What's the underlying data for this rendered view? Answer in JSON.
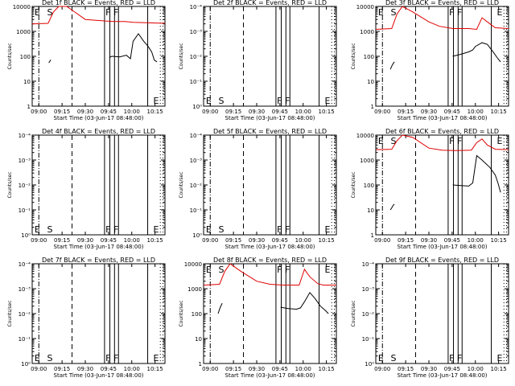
{
  "chart_data": [
    {
      "type": "line",
      "title": "Det 1f BLACK = Events, RED = LLD",
      "xlabel": "Start Time (03-Jun-17 08:48:00)",
      "ylabel": "Counts/sec",
      "xticks": [
        "09:00",
        "09:15",
        "09:30",
        "09:45",
        "10:00",
        "10:15"
      ],
      "yticks": [
        "1",
        "10",
        "100",
        "1000",
        "10000"
      ],
      "flags": [
        "E",
        "S",
        "F",
        "F",
        "E"
      ],
      "flag_hidden": [
        true,
        true,
        true,
        true,
        false
      ],
      "ylim": [
        1,
        10000
      ],
      "lld": [
        [
          0.0,
          2000
        ],
        [
          0.12,
          2100
        ],
        [
          0.16,
          6000
        ],
        [
          0.2,
          10000
        ],
        [
          0.26,
          10000
        ],
        [
          0.32,
          6000
        ],
        [
          0.4,
          3000
        ],
        [
          0.55,
          2600
        ],
        [
          0.62,
          2500
        ],
        [
          0.7,
          2500
        ],
        [
          0.76,
          2300
        ],
        [
          0.88,
          2200
        ],
        [
          1.0,
          2100
        ]
      ],
      "events": [
        [
          [
            0.125,
            55
          ],
          [
            0.13,
            60
          ],
          [
            0.14,
            72
          ]
        ],
        [
          [
            0.58,
            90
          ],
          [
            0.6,
            100
          ],
          [
            0.66,
            95
          ],
          [
            0.71,
            110
          ],
          [
            0.74,
            80
          ],
          [
            0.76,
            400
          ],
          [
            0.8,
            800
          ],
          [
            0.84,
            400
          ],
          [
            0.87,
            260
          ],
          [
            0.9,
            150
          ],
          [
            0.92,
            70
          ],
          [
            0.94,
            60
          ]
        ]
      ]
    },
    {
      "type": "line",
      "title": "Det 2f BLACK = Events, RED = LLD",
      "xlabel": "Start Time (03-Jun-17 08:48:00)",
      "ylabel": "Counts/sec",
      "xticks": [
        "09:00",
        "09:15",
        "09:30",
        "09:45",
        "10:00",
        "10:15"
      ],
      "yticks": [
        "10⁰",
        "10⁻¹",
        "10⁻²",
        "10⁻³",
        "10⁻⁴"
      ],
      "flags": [
        "E",
        "S",
        "F",
        "F",
        "E"
      ],
      "flag_hidden": [
        false,
        false,
        false,
        false,
        false
      ],
      "ylim": [
        0.0001,
        1
      ],
      "lld": [],
      "events": []
    },
    {
      "type": "line",
      "title": "Det 3f BLACK = Events, RED = LLD",
      "xlabel": "Start Time (03-Jun-17 08:48:00)",
      "ylabel": "Counts/sec",
      "xticks": [
        "09:00",
        "09:15",
        "09:30",
        "09:45",
        "10:00",
        "10:15"
      ],
      "yticks": [
        "1",
        "10",
        "100",
        "1000",
        "10000"
      ],
      "flags": [
        "E",
        "S",
        "F",
        "F",
        "E"
      ],
      "flag_hidden": [
        true,
        true,
        true,
        true,
        true
      ],
      "ylim": [
        1,
        10000
      ],
      "lld": [
        [
          0.0,
          1200
        ],
        [
          0.12,
          1300
        ],
        [
          0.16,
          5000
        ],
        [
          0.2,
          10000
        ],
        [
          0.28,
          6000
        ],
        [
          0.4,
          2400
        ],
        [
          0.48,
          1600
        ],
        [
          0.58,
          1300
        ],
        [
          0.7,
          1300
        ],
        [
          0.76,
          1200
        ],
        [
          0.8,
          3500
        ],
        [
          0.86,
          2000
        ],
        [
          0.9,
          1400
        ],
        [
          1.0,
          1300
        ]
      ],
      "events": [
        [
          [
            0.11,
            30
          ],
          [
            0.12,
            40
          ],
          [
            0.13,
            50
          ],
          [
            0.14,
            60
          ]
        ],
        [
          [
            0.58,
            100
          ],
          [
            0.64,
            120
          ],
          [
            0.7,
            150
          ],
          [
            0.73,
            180
          ],
          [
            0.75,
            250
          ],
          [
            0.8,
            350
          ],
          [
            0.84,
            300
          ],
          [
            0.88,
            160
          ],
          [
            0.92,
            80
          ],
          [
            0.94,
            60
          ]
        ]
      ]
    },
    {
      "type": "line",
      "title": "Det 4f BLACK = Events, RED = LLD",
      "xlabel": "Start Time (03-Jun-17 08:48:00)",
      "ylabel": "Counts/sec",
      "xticks": [
        "09:00",
        "09:15",
        "09:30",
        "09:45",
        "10:00",
        "10:15"
      ],
      "yticks": [
        "10⁰",
        "10⁻¹",
        "10⁻²",
        "10⁻³",
        "10⁻⁴"
      ],
      "flags": [
        "E",
        "S",
        "F",
        "F",
        "E"
      ],
      "flag_hidden": [
        false,
        false,
        false,
        false,
        false
      ],
      "ylim": [
        0.0001,
        1
      ],
      "lld": [],
      "events": []
    },
    {
      "type": "line",
      "title": "Det 5f BLACK = Events, RED = LLD",
      "xlabel": "Start Time (03-Jun-17 08:48:00)",
      "ylabel": "Counts/sec",
      "xticks": [
        "09:00",
        "09:15",
        "09:30",
        "09:45",
        "10:00",
        "10:15"
      ],
      "yticks": [
        "10⁰",
        "10⁻¹",
        "10⁻²",
        "10⁻³",
        "10⁻⁴"
      ],
      "flags": [
        "E",
        "S",
        "F",
        "F",
        "E"
      ],
      "flag_hidden": [
        false,
        false,
        false,
        false,
        false
      ],
      "ylim": [
        0.0001,
        1
      ],
      "lld": [],
      "events": []
    },
    {
      "type": "line",
      "title": "Det 6f BLACK = Events, RED = LLD",
      "xlabel": "Start Time (03-Jun-17 08:48:00)",
      "ylabel": "Counts/sec",
      "xticks": [
        "09:00",
        "09:15",
        "09:30",
        "09:45",
        "10:00",
        "10:15"
      ],
      "yticks": [
        "1",
        "10",
        "100",
        "1000",
        "10000"
      ],
      "flags": [
        "E",
        "S",
        "F",
        "F",
        "E"
      ],
      "flag_hidden": [
        true,
        true,
        true,
        true,
        true
      ],
      "ylim": [
        1,
        10000
      ],
      "lld": [
        [
          0.0,
          2600
        ],
        [
          0.12,
          2700
        ],
        [
          0.16,
          6000
        ],
        [
          0.2,
          10000
        ],
        [
          0.28,
          8000
        ],
        [
          0.4,
          3000
        ],
        [
          0.5,
          2500
        ],
        [
          0.6,
          2400
        ],
        [
          0.72,
          2500
        ],
        [
          0.76,
          5000
        ],
        [
          0.8,
          7000
        ],
        [
          0.84,
          4000
        ],
        [
          0.9,
          2700
        ],
        [
          1.0,
          2600
        ]
      ],
      "events": [
        [
          [
            0.11,
            10
          ],
          [
            0.12,
            12
          ],
          [
            0.13,
            15
          ],
          [
            0.14,
            17
          ]
        ],
        [
          [
            0.58,
            100
          ],
          [
            0.64,
            95
          ],
          [
            0.7,
            90
          ],
          [
            0.73,
            120
          ],
          [
            0.76,
            1500
          ],
          [
            0.8,
            1000
          ],
          [
            0.86,
            500
          ],
          [
            0.9,
            250
          ],
          [
            0.92,
            120
          ],
          [
            0.94,
            50
          ]
        ]
      ]
    },
    {
      "type": "line",
      "title": "Det 7f BLACK = Events, RED = LLD",
      "xlabel": "Start Time (03-Jun-17 08:48:00)",
      "ylabel": "Counts/sec",
      "xticks": [
        "09:00",
        "09:15",
        "09:30",
        "09:45",
        "10:00",
        "10:15"
      ],
      "yticks": [
        "10⁰",
        "10⁻¹",
        "10⁻²",
        "10⁻³",
        "10⁻⁴"
      ],
      "flags": [
        "E",
        "S",
        "F",
        "F",
        "E"
      ],
      "flag_hidden": [
        false,
        false,
        false,
        false,
        false
      ],
      "ylim": [
        0.0001,
        1
      ],
      "lld": [],
      "events": []
    },
    {
      "type": "line",
      "title": "Det 8f BLACK = Events, RED = LLD",
      "xlabel": "Start Time (03-Jun-17 08:48:00)",
      "ylabel": "Counts/sec",
      "xticks": [
        "09:00",
        "09:15",
        "09:30",
        "09:45",
        "10:00",
        "10:15"
      ],
      "yticks": [
        "1",
        "10",
        "100",
        "1000",
        "10000"
      ],
      "flags": [
        "E",
        "S",
        "F",
        "F",
        "E"
      ],
      "flag_hidden": [
        true,
        true,
        true,
        true,
        true
      ],
      "ylim": [
        1,
        10000
      ],
      "lld": [
        [
          0.0,
          1400
        ],
        [
          0.12,
          1500
        ],
        [
          0.16,
          5000
        ],
        [
          0.2,
          10000
        ],
        [
          0.28,
          5000
        ],
        [
          0.4,
          2000
        ],
        [
          0.5,
          1500
        ],
        [
          0.6,
          1400
        ],
        [
          0.72,
          1400
        ],
        [
          0.76,
          6000
        ],
        [
          0.8,
          3000
        ],
        [
          0.86,
          1600
        ],
        [
          0.9,
          1400
        ],
        [
          1.0,
          1400
        ]
      ],
      "events": [
        [
          [
            0.11,
            100
          ],
          [
            0.12,
            150
          ],
          [
            0.13,
            200
          ],
          [
            0.14,
            260
          ]
        ],
        [
          [
            0.58,
            180
          ],
          [
            0.64,
            160
          ],
          [
            0.7,
            150
          ],
          [
            0.73,
            170
          ],
          [
            0.76,
            300
          ],
          [
            0.8,
            700
          ],
          [
            0.84,
            400
          ],
          [
            0.88,
            200
          ],
          [
            0.92,
            130
          ],
          [
            0.94,
            100
          ]
        ]
      ]
    },
    {
      "type": "line",
      "title": "Det 9f BLACK = Events, RED = LLD",
      "xlabel": "Start Time (03-Jun-17 08:48:00)",
      "ylabel": "Counts/sec",
      "xticks": [
        "09:00",
        "09:15",
        "09:30",
        "09:45",
        "10:00",
        "10:15"
      ],
      "yticks": [
        "10⁰",
        "10⁻¹",
        "10⁻²",
        "10⁻³",
        "10⁻⁴"
      ],
      "flags": [
        "E",
        "S",
        "F",
        "F",
        "E"
      ],
      "flag_hidden": [
        false,
        false,
        false,
        false,
        false
      ],
      "ylim": [
        0.0001,
        1
      ],
      "lld": [],
      "events": []
    }
  ],
  "colors": {
    "events": "#000000",
    "lld": "#e00000",
    "axes": "#000000"
  }
}
